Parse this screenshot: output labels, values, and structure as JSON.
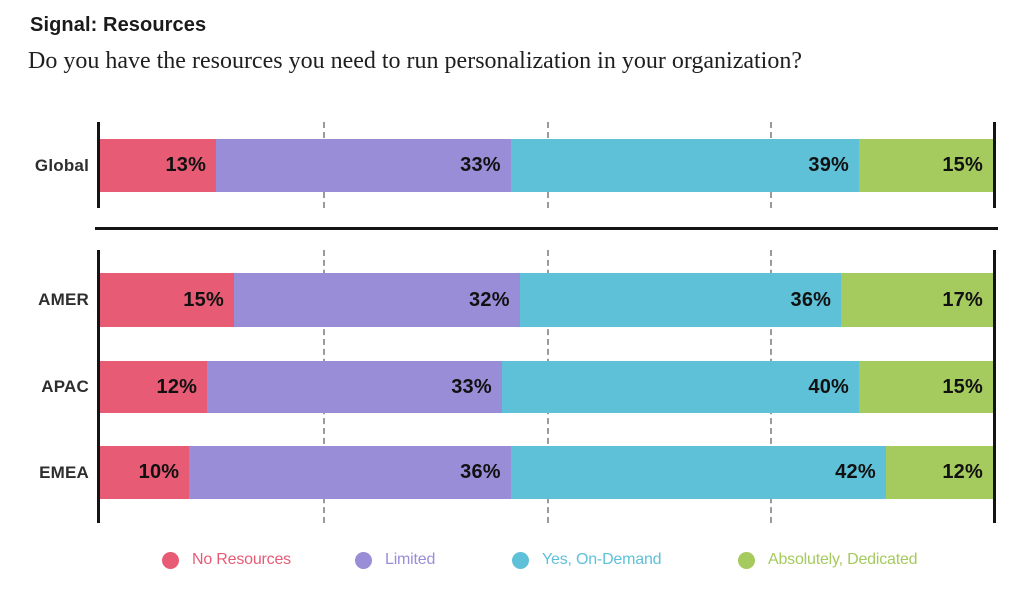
{
  "chart_data": {
    "type": "bar",
    "variant": "horizontal-stacked",
    "title": "Signal: Resources",
    "subtitle": "Do you have the resources you need to run personalization in your organization?",
    "categories": [
      "Global",
      "AMER",
      "APAC",
      "EMEA"
    ],
    "panels": [
      [
        "Global"
      ],
      [
        "AMER",
        "APAC",
        "EMEA"
      ]
    ],
    "series": [
      {
        "name": "No Resources",
        "color": "#E75B75",
        "values": [
          13,
          15,
          12,
          10
        ]
      },
      {
        "name": "Limited",
        "color": "#9A8DD8",
        "values": [
          33,
          32,
          33,
          36
        ]
      },
      {
        "name": "Yes, On-Demand",
        "color": "#5FC1D8",
        "values": [
          39,
          36,
          40,
          42
        ]
      },
      {
        "name": "Absolutely, Dedicated",
        "color": "#A5CA5E",
        "values": [
          15,
          17,
          15,
          12
        ]
      }
    ],
    "value_suffix": "%",
    "xlim": [
      0,
      100
    ],
    "gridlines_pct": [
      25,
      50,
      75
    ],
    "gridline_style": "dashed",
    "legend_position": "bottom",
    "axis_color": "#141414",
    "gridline_color": "#9b9b9b"
  }
}
